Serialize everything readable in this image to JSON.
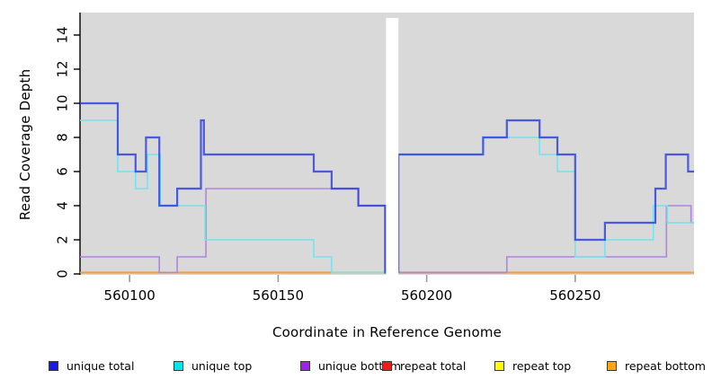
{
  "axes": {
    "xlabel": "Coordinate in Reference Genome",
    "ylabel": "Read Coverage Depth",
    "x_ticks": [
      560100,
      560150,
      560200,
      560250
    ],
    "y_ticks": [
      0,
      2,
      4,
      6,
      8,
      10,
      12,
      14
    ],
    "x_range": [
      560083.3,
      560290
    ],
    "y_range": [
      0,
      15.3
    ],
    "panel_color": "#d9d9d9",
    "x_tick_color": "#9a9a9a",
    "y_tick_color": "#000000",
    "tick_label_color": "#000000"
  },
  "legend": {
    "items": [
      {
        "label": "unique total",
        "color": "#1a1aee"
      },
      {
        "label": "unique top",
        "color": "#00e5f0"
      },
      {
        "label": "unique bottom",
        "color": "#a020f0"
      },
      {
        "label": "repeat total",
        "color": "#ee1c1c"
      },
      {
        "label": "repeat top",
        "color": "#ffff00"
      },
      {
        "label": "repeat bottom",
        "color": "#ffa510"
      }
    ]
  },
  "chart_data": {
    "type": "line",
    "subtype": "step-coverage",
    "title": "",
    "xlabel": "Coordinate in Reference Genome",
    "ylabel": "Read Coverage Depth",
    "x_range": [
      560083.3,
      560290
    ],
    "ylim": [
      0,
      15
    ],
    "grid": false,
    "legend_position": "bottom-horizontal",
    "no_data_gap": {
      "from": 560186.3,
      "to": 560190.5,
      "color": "#ffffff"
    },
    "series": [
      {
        "name": "unique total",
        "color": "#2b3de0",
        "opacity": 0.82,
        "width": 2.2,
        "z": 6,
        "segments": [
          [
            [
              560083.3,
              10
            ],
            [
              560096,
              10
            ],
            [
              560096,
              7
            ],
            [
              560102,
              7
            ],
            [
              560102,
              6
            ],
            [
              560105.5,
              6
            ],
            [
              560105.5,
              8
            ],
            [
              560110,
              8
            ],
            [
              560110,
              4
            ],
            [
              560116,
              4
            ],
            [
              560116,
              5
            ],
            [
              560124,
              5
            ],
            [
              560124,
              9
            ],
            [
              560125,
              9
            ],
            [
              560125,
              7
            ],
            [
              560162,
              7
            ],
            [
              560162,
              6
            ],
            [
              560168,
              6
            ],
            [
              560168,
              5
            ],
            [
              560177,
              5
            ],
            [
              560177,
              4
            ],
            [
              560186,
              4
            ],
            [
              560186,
              0
            ],
            [
              560186.3,
              0
            ]
          ],
          [
            [
              560190.5,
              0
            ],
            [
              560190.5,
              7
            ],
            [
              560219,
              7
            ],
            [
              560219,
              8
            ],
            [
              560227,
              8
            ],
            [
              560227,
              9
            ],
            [
              560238,
              9
            ],
            [
              560238,
              8
            ],
            [
              560244,
              8
            ],
            [
              560244,
              7
            ],
            [
              560250,
              7
            ],
            [
              560250,
              2
            ],
            [
              560260,
              2
            ],
            [
              560260,
              3
            ],
            [
              560277,
              3
            ],
            [
              560277,
              5
            ],
            [
              560280.5,
              5
            ],
            [
              560280.5,
              7
            ],
            [
              560288,
              7
            ],
            [
              560288,
              6
            ],
            [
              560290,
              6
            ]
          ]
        ]
      },
      {
        "name": "unique top",
        "color": "#76e3ee",
        "opacity": 1,
        "width": 1.6,
        "z": 5,
        "segments": [
          [
            [
              560083.3,
              9
            ],
            [
              560096,
              9
            ],
            [
              560096,
              6
            ],
            [
              560102,
              6
            ],
            [
              560102,
              5
            ],
            [
              560106,
              5
            ],
            [
              560106,
              7
            ],
            [
              560110.3,
              7
            ],
            [
              560110.3,
              4
            ],
            [
              560125.4,
              4
            ],
            [
              560125.4,
              2
            ],
            [
              560162,
              2
            ],
            [
              560162,
              1
            ],
            [
              560168,
              1
            ],
            [
              560168,
              0
            ],
            [
              560186.3,
              0
            ]
          ],
          [
            [
              560190.5,
              0
            ],
            [
              560190.5,
              7
            ],
            [
              560219,
              7
            ],
            [
              560219,
              8
            ],
            [
              560238,
              8
            ],
            [
              560238,
              7
            ],
            [
              560244,
              7
            ],
            [
              560244,
              6
            ],
            [
              560250,
              6
            ],
            [
              560250,
              1
            ],
            [
              560260,
              1
            ],
            [
              560260,
              2
            ],
            [
              560276.3,
              2
            ],
            [
              560276.3,
              4
            ],
            [
              560281,
              4
            ],
            [
              560281,
              3
            ],
            [
              560290,
              3
            ]
          ]
        ]
      },
      {
        "name": "unique bottom",
        "color": "#b184df",
        "opacity": 1,
        "width": 1.6,
        "z": 4,
        "segments": [
          [
            [
              560083.3,
              1
            ],
            [
              560110,
              1
            ],
            [
              560110,
              0
            ],
            [
              560116,
              0
            ],
            [
              560116,
              1
            ],
            [
              560125.7,
              1
            ],
            [
              560125.7,
              5
            ],
            [
              560177,
              5
            ],
            [
              560177,
              4
            ],
            [
              560186,
              4
            ],
            [
              560186,
              0
            ],
            [
              560186.3,
              0
            ]
          ],
          [
            [
              560190.5,
              0
            ],
            [
              560227,
              0
            ],
            [
              560227,
              1
            ],
            [
              560280.7,
              1
            ],
            [
              560280.7,
              4
            ],
            [
              560289,
              4
            ],
            [
              560289,
              3
            ],
            [
              560290,
              3
            ]
          ]
        ]
      },
      {
        "name": "repeat total",
        "color": "#ee1c1c",
        "opacity": 1,
        "width": 1.5,
        "z": 2,
        "segments": [
          [
            [
              560083.3,
              0
            ],
            [
              560186.3,
              0
            ]
          ],
          [
            [
              560190.5,
              0
            ],
            [
              560290,
              0
            ]
          ]
        ]
      },
      {
        "name": "repeat top",
        "color": "#f5f500",
        "opacity": 1,
        "width": 1.5,
        "z": 1,
        "segments": [
          [
            [
              560083.3,
              0
            ],
            [
              560186.3,
              0
            ]
          ],
          [
            [
              560190.5,
              0
            ],
            [
              560290,
              0
            ]
          ]
        ]
      },
      {
        "name": "repeat bottom",
        "color": "#ff9d1e",
        "opacity": 1,
        "width": 1.8,
        "z": 3,
        "segments": [
          [
            [
              560083.3,
              0
            ],
            [
              560186.3,
              0
            ]
          ],
          [
            [
              560190.5,
              0
            ],
            [
              560290,
              0
            ]
          ]
        ]
      }
    ],
    "baseline_overlays": [
      {
        "from": 560168,
        "to": 560186.3,
        "value": 0,
        "color": "#8fc98f",
        "note": "green-tinted depth-0 stretch left of gap"
      },
      {
        "from": 560190.5,
        "to": 560226.8,
        "value": 0,
        "color": "#cd5c76",
        "note": "crimson-tinted depth-0 stretch right of gap"
      }
    ]
  }
}
